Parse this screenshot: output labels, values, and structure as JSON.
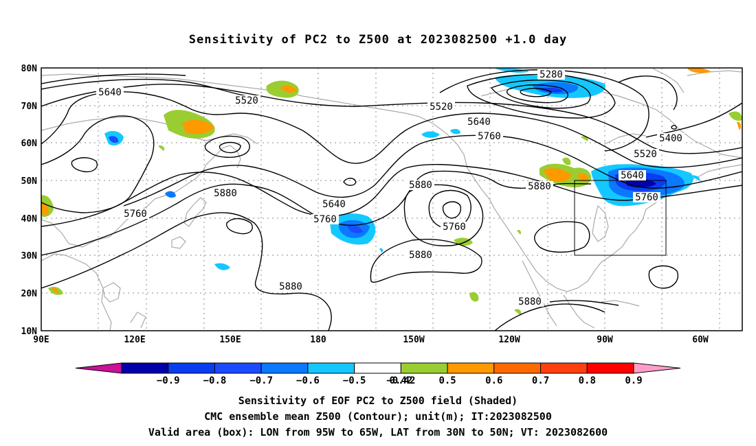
{
  "title": "Sensitivity of PC2 to Z500 at 2023082500 +1.0 day",
  "map": {
    "lat_labels": [
      "80N",
      "70N",
      "60N",
      "50N",
      "40N",
      "30N",
      "20N",
      "10N"
    ],
    "lon_labels": [
      "90E",
      "120E",
      "150E",
      "180",
      "150W",
      "120W",
      "90W",
      "60W"
    ],
    "contour_labels": [
      {
        "text": "5280"
      },
      {
        "text": "5400"
      },
      {
        "text": "5520"
      },
      {
        "text": "5520"
      },
      {
        "text": "5520"
      },
      {
        "text": "5640"
      },
      {
        "text": "5640"
      },
      {
        "text": "5640"
      },
      {
        "text": "5640"
      },
      {
        "text": "5760"
      },
      {
        "text": "5760"
      },
      {
        "text": "5760"
      },
      {
        "text": "5760"
      },
      {
        "text": "5760"
      },
      {
        "text": "5880"
      },
      {
        "text": "5880"
      },
      {
        "text": "5880"
      },
      {
        "text": "5880"
      },
      {
        "text": "5880"
      },
      {
        "text": "5880"
      }
    ],
    "colors": {
      "negative": "#0033ff",
      "positive": "#ff9900",
      "land": "#aaaaaa",
      "contour": "#000000",
      "grid": "#888888"
    }
  },
  "colorbar": {
    "labels": [
      "-0.9",
      "-0.8",
      "-0.7",
      "-0.6",
      "-0.5",
      "-0.42",
      "0.42",
      "0.5",
      "0.6",
      "0.7",
      "0.8",
      "0.9"
    ],
    "colors": [
      "#0000aa",
      "#0a3cf0",
      "#1a4bff",
      "#0a78ff",
      "#14c8ff",
      "#ffffff",
      "#9acd32",
      "#ff9900",
      "#ff6a00",
      "#ff3f10",
      "#ff0000"
    ],
    "left_end_color": "#cc1199",
    "right_end_color": "#ff9fc8"
  },
  "footer": {
    "line1": "Sensitivity of EOF PC2 to Z500 field (Shaded)",
    "line2": "CMC ensemble mean Z500 (Contour); unit(m); IT:2023082500",
    "line3": "Valid area (box): LON from 95W to 65W, LAT from 30N to 50N; VT: 2023082600"
  }
}
